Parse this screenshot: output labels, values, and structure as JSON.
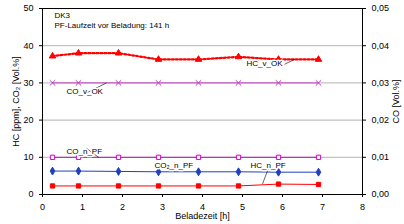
{
  "chart_data": {
    "type": "line",
    "annotations": [
      "DK3",
      "PF-Laufzeit vor Beladung: 141 h"
    ],
    "xlabel": "Beladezeit [h]",
    "ylabel": "HC [ppm], CO₂ [Vol.%]",
    "y2label": "CO [Vol.%]",
    "x": [
      0.25,
      0.9,
      1.9,
      2.9,
      3.9,
      4.9,
      5.9,
      6.9
    ],
    "xlim": [
      0,
      8
    ],
    "xticks": [
      0,
      1,
      2,
      3,
      4,
      5,
      6,
      7,
      8
    ],
    "ylim": [
      0,
      50
    ],
    "yticks": [
      0,
      10,
      20,
      30,
      40,
      50
    ],
    "y2lim": [
      0,
      0.05
    ],
    "y2ticks": [
      {
        "value": 0,
        "label": "0,00"
      },
      {
        "value": 0.01,
        "label": "0,01"
      },
      {
        "value": 0.02,
        "label": "0,02"
      },
      {
        "value": 0.03,
        "label": "0,03"
      },
      {
        "value": 0.04,
        "label": "0,04"
      },
      {
        "value": 0.05,
        "label": "0,05"
      }
    ],
    "grid": true,
    "series": [
      {
        "name": "HC_v_OK",
        "color": "#ff0000",
        "marker": "triangle",
        "line_style": "dotted",
        "values": [
          37.2,
          38,
          38,
          36.3,
          36.3,
          37,
          36.3,
          36.3
        ]
      },
      {
        "name": "CO_v_OK",
        "color": "#c040c0",
        "marker": "x",
        "line_style": "solid",
        "axis": "y2",
        "values": [
          0.03,
          0.03,
          0.03,
          0.03,
          0.03,
          0.03,
          0.03,
          0.03
        ]
      },
      {
        "name": "CO_n_PF",
        "color": "#cc00cc",
        "marker": "square",
        "line_style": "solid",
        "axis": "y2",
        "values": [
          0.01,
          0.01,
          0.01,
          0.01,
          0.01,
          0.01,
          0.01,
          0.01
        ]
      },
      {
        "name": "CO₂_n_PF",
        "color": "#2040c0",
        "marker": "diamond",
        "line_style": "solid",
        "values": [
          6.3,
          6.3,
          6.2,
          6.1,
          6.1,
          6.1,
          6.0,
          6.0
        ]
      },
      {
        "name": "HC_n_PF",
        "color": "#ff0000",
        "marker": "square",
        "line_style": "solid",
        "values": [
          2.3,
          2.3,
          2.3,
          2.3,
          2.3,
          2.3,
          2.8,
          2.7
        ]
      }
    ]
  }
}
